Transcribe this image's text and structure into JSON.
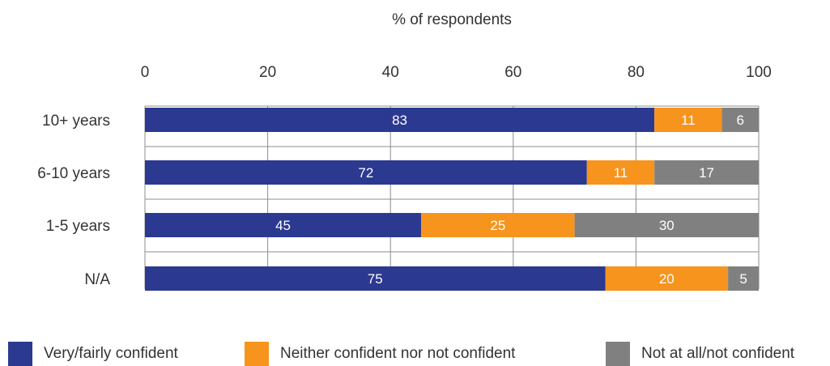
{
  "chart_data": {
    "type": "bar",
    "orientation": "horizontal",
    "stacked": true,
    "xlabel": "% of respondents",
    "xlabel_position": "top",
    "xlim": [
      0,
      100
    ],
    "x_ticks": [
      "0",
      "20",
      "40",
      "60",
      "80",
      "100"
    ],
    "categories": [
      "10+ years",
      "6-10 years",
      "1-5 years",
      "N/A"
    ],
    "series": [
      {
        "name": "Very/fairly confident",
        "color": "#2b3990",
        "values": [
          83,
          72,
          45,
          75
        ]
      },
      {
        "name": "Neither confident nor not confident",
        "color": "#f7941d",
        "values": [
          11,
          11,
          25,
          20
        ]
      },
      {
        "name": "Not at all/not confident",
        "color": "#808080",
        "values": [
          6,
          17,
          30,
          5
        ]
      }
    ],
    "grid": "vertical",
    "legend_position": "bottom"
  }
}
